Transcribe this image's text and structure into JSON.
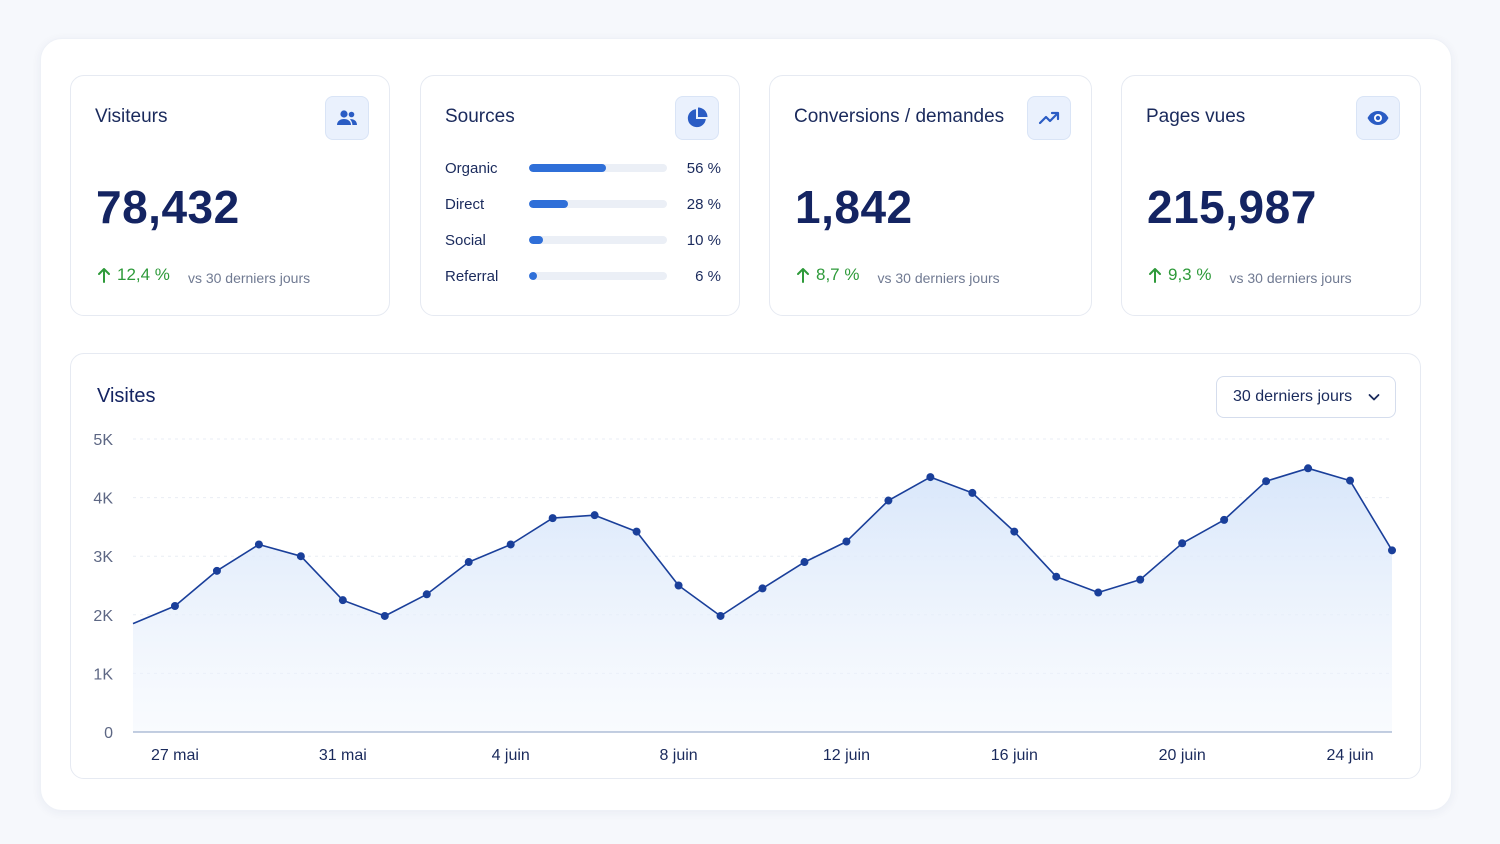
{
  "cards": {
    "visitors": {
      "title": "Visiteurs",
      "value": "78,432",
      "delta": "12,4 %",
      "note": "vs 30 derniers jours",
      "icon": "users-icon"
    },
    "sources": {
      "title": "Sources",
      "icon": "pie-chart-icon",
      "items": [
        {
          "label": "Organic",
          "pct": "56 %",
          "value": 56
        },
        {
          "label": "Direct",
          "pct": "28 %",
          "value": 28
        },
        {
          "label": "Social",
          "pct": "10 %",
          "value": 10
        },
        {
          "label": "Referral",
          "pct": "6 %",
          "value": 6
        }
      ]
    },
    "conversions": {
      "title": "Conversions / demandes",
      "value": "1,842",
      "delta": "8,7 %",
      "note": "vs 30 derniers jours",
      "icon": "trending-up-icon"
    },
    "pageviews": {
      "title": "Pages vues",
      "value": "215,987",
      "delta": "9,3 %",
      "note": "vs 30 derniers jours",
      "icon": "eye-icon"
    }
  },
  "visits": {
    "title": "Visites",
    "range_label": "30 derniers jours"
  },
  "colors": {
    "accent": "#2f6fd8",
    "line": "#1a3f9a",
    "positive": "#2e9a3a",
    "navy": "#142462"
  },
  "chart_data": {
    "type": "area",
    "title": "Visites",
    "x": [
      "26 mai",
      "27 mai",
      "28 mai",
      "29 mai",
      "30 mai",
      "31 mai",
      "1 juin",
      "2 juin",
      "3 juin",
      "4 juin",
      "5 juin",
      "6 juin",
      "7 juin",
      "8 juin",
      "9 juin",
      "10 juin",
      "11 juin",
      "12 juin",
      "13 juin",
      "14 juin",
      "15 juin",
      "16 juin",
      "17 juin",
      "18 juin",
      "19 juin",
      "20 juin",
      "21 juin",
      "22 juin",
      "23 juin",
      "24 juin",
      "25 juin"
    ],
    "values": [
      1850,
      2150,
      2750,
      3200,
      3000,
      2250,
      1980,
      2350,
      2900,
      3200,
      3650,
      3700,
      3420,
      2500,
      1980,
      2450,
      2900,
      3250,
      3950,
      4350,
      4080,
      3420,
      2650,
      2380,
      2600,
      3220,
      3620,
      4280,
      4500,
      4290,
      3100
    ],
    "x_tick_labels": [
      "27 mai",
      "31 mai",
      "4 juin",
      "8 juin",
      "12 juin",
      "16 juin",
      "20 juin",
      "24 juin"
    ],
    "y_tick_labels": [
      "0",
      "1K",
      "2K",
      "3K",
      "4K",
      "5K"
    ],
    "ylim": [
      0,
      5000
    ],
    "grid": true,
    "markers_from_index": 1
  }
}
